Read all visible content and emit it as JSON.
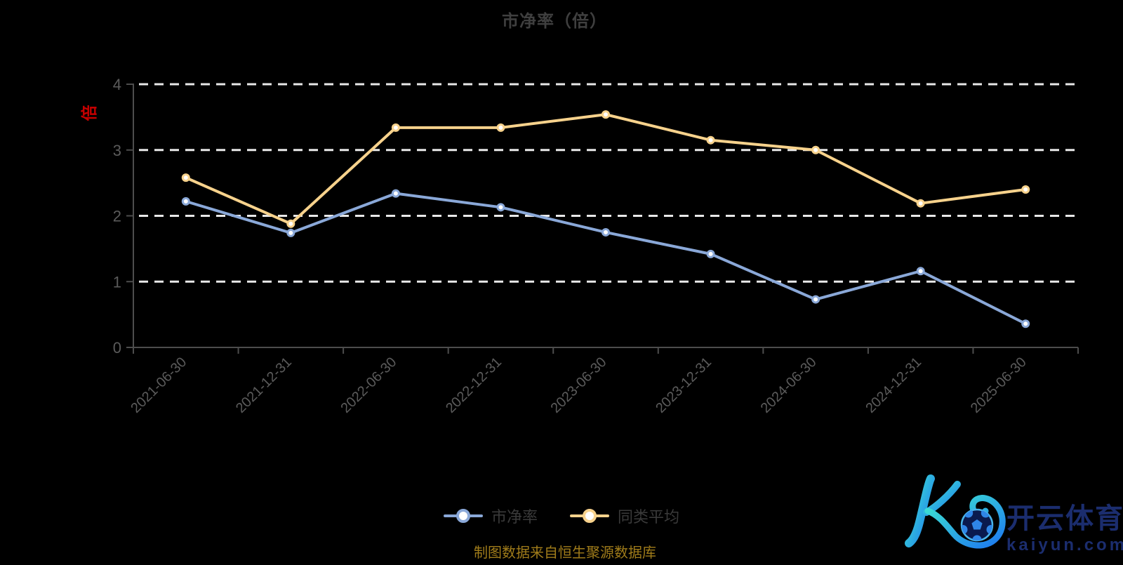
{
  "title": "市净率（倍）",
  "y_axis_unit": "倍",
  "footer": "制图数据来自恒生聚源数据库",
  "watermark": {
    "brand": "开云体育",
    "domain": "kaiyun.com"
  },
  "colors": {
    "background": "#000000",
    "title_text": "#3f3f3f",
    "unit_label": "#c40000",
    "axis_line": "#4d4d4d",
    "axis_label": "#5b5b5b",
    "gridline": "#e8e8e8",
    "legend_text": "#3a3a3a",
    "footer_text": "#a07c1a",
    "series_pbr": "#8aa8d8",
    "series_avg": "#f7d28c",
    "marker_fill": "#ffffff",
    "watermark_text": "#1b2d6e",
    "k_gradient_start": "#3fe9d0",
    "k_gradient_end": "#1d78f0",
    "ball_dark": "#0a1a4e",
    "ball_light": "#2f86e8",
    "ball_ring": "#49b4ea"
  },
  "chart_data": {
    "type": "line",
    "title": "市净率（倍）",
    "categories": [
      "2021-06-30",
      "2021-12-31",
      "2022-06-30",
      "2022-12-31",
      "2023-06-30",
      "2023-12-31",
      "2024-06-30",
      "2024-12-31",
      "2025-06-30"
    ],
    "series": [
      {
        "name": "市净率",
        "color": "#8aa8d8",
        "values": [
          2.22,
          1.74,
          2.34,
          2.13,
          1.75,
          1.42,
          0.73,
          1.16,
          0.36
        ]
      },
      {
        "name": "同类平均",
        "color": "#f7d28c",
        "values": [
          2.58,
          1.88,
          3.34,
          3.34,
          3.54,
          3.15,
          3.0,
          2.19,
          2.4
        ]
      }
    ],
    "xlabel": "",
    "ylabel": "倍",
    "ylim": [
      0,
      4
    ],
    "yticks": [
      0,
      1,
      2,
      3,
      4
    ],
    "grid": true,
    "grid_style": "dashed",
    "legend_position": "bottom",
    "x_label_rotation": 45
  }
}
